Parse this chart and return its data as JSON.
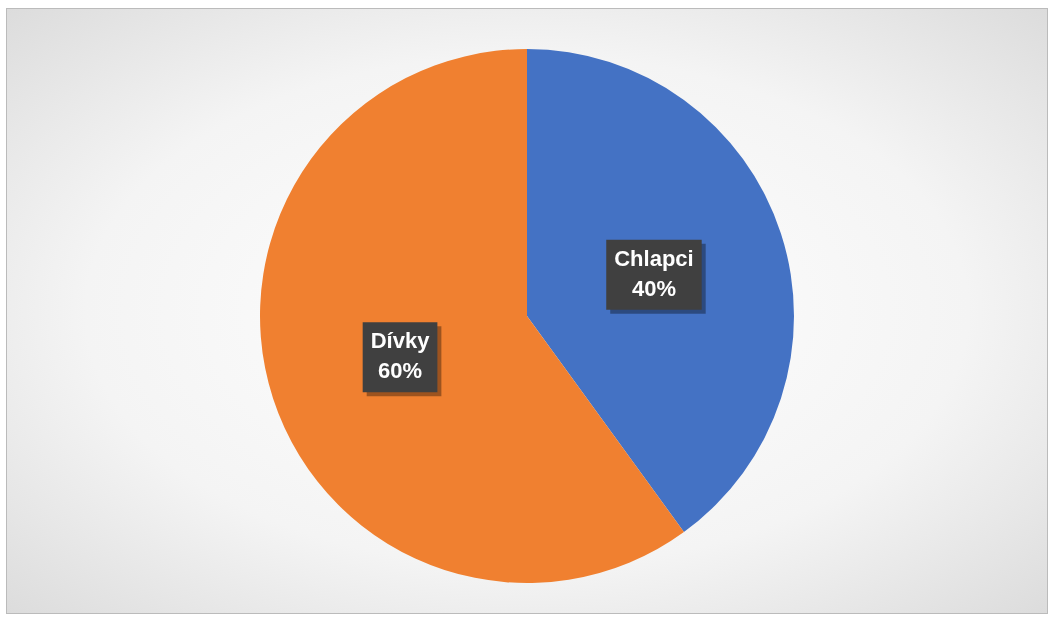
{
  "chart_data": {
    "type": "pie",
    "categories": [
      "Chlapci",
      "Dívky"
    ],
    "values": [
      40,
      60
    ],
    "colors": [
      "#4472c4",
      "#f08030"
    ],
    "value_labels": [
      "40%",
      "60%"
    ],
    "legend": false
  }
}
